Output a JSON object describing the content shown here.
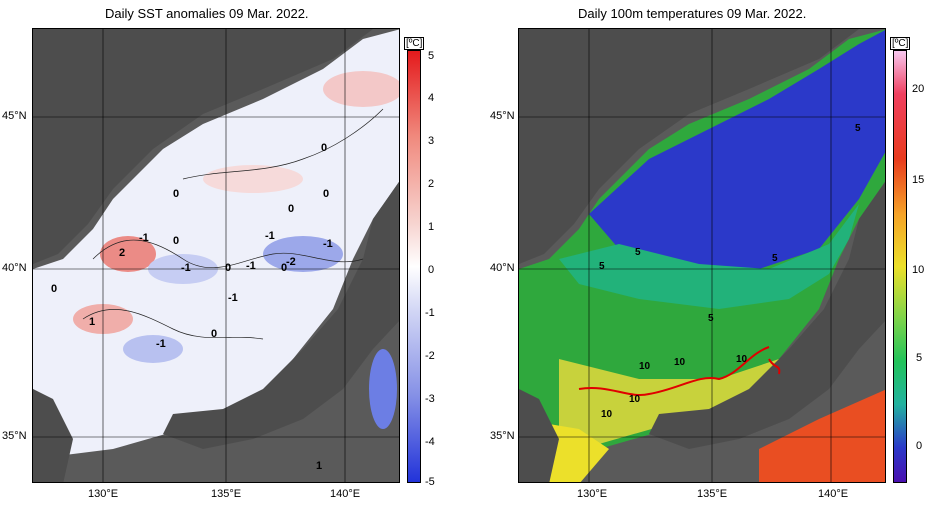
{
  "left_panel": {
    "title": "Daily SST anomalies 09 Mar. 2022.",
    "unit": "[ºC]",
    "colorbar_ticks": [
      "5",
      "4",
      "3",
      "2",
      "1",
      "0",
      "-1",
      "-2",
      "-3",
      "-4",
      "-5"
    ],
    "contour_labels": [
      "0",
      "0",
      "0",
      "0",
      "0",
      "0",
      "0",
      "0",
      "-1",
      "-1",
      "-1",
      "-1",
      "-1",
      "-1",
      "-1",
      "-2",
      "2",
      "1",
      "1",
      "0"
    ],
    "lat_labels": [
      "45°N",
      "40°N",
      "35°N"
    ],
    "lon_labels": [
      "130°E",
      "135°E",
      "140°E"
    ],
    "colors": {
      "positive": "#e0463c",
      "negative": "#3b4fd6",
      "zero": "#ffffff",
      "land": "#4d4d4d"
    }
  },
  "right_panel": {
    "title": "Daily 100m temperatures 09 Mar. 2022.",
    "unit": "[ºC]",
    "colorbar_ticks": [
      "20",
      "15",
      "10",
      "5",
      "0"
    ],
    "contour_labels": [
      "5",
      "5",
      "5",
      "5",
      "5",
      "10",
      "10",
      "10",
      "10",
      "10"
    ],
    "lat_labels": [
      "45°N",
      "40°N",
      "35°N"
    ],
    "lon_labels": [
      "130°E",
      "135°E",
      "140°E"
    ],
    "colors": {
      "cold": "#2c1fd0",
      "mid": "#22c35a",
      "warm": "#e83b1e",
      "front": "#e00000",
      "land": "#4d4d4d"
    }
  }
}
